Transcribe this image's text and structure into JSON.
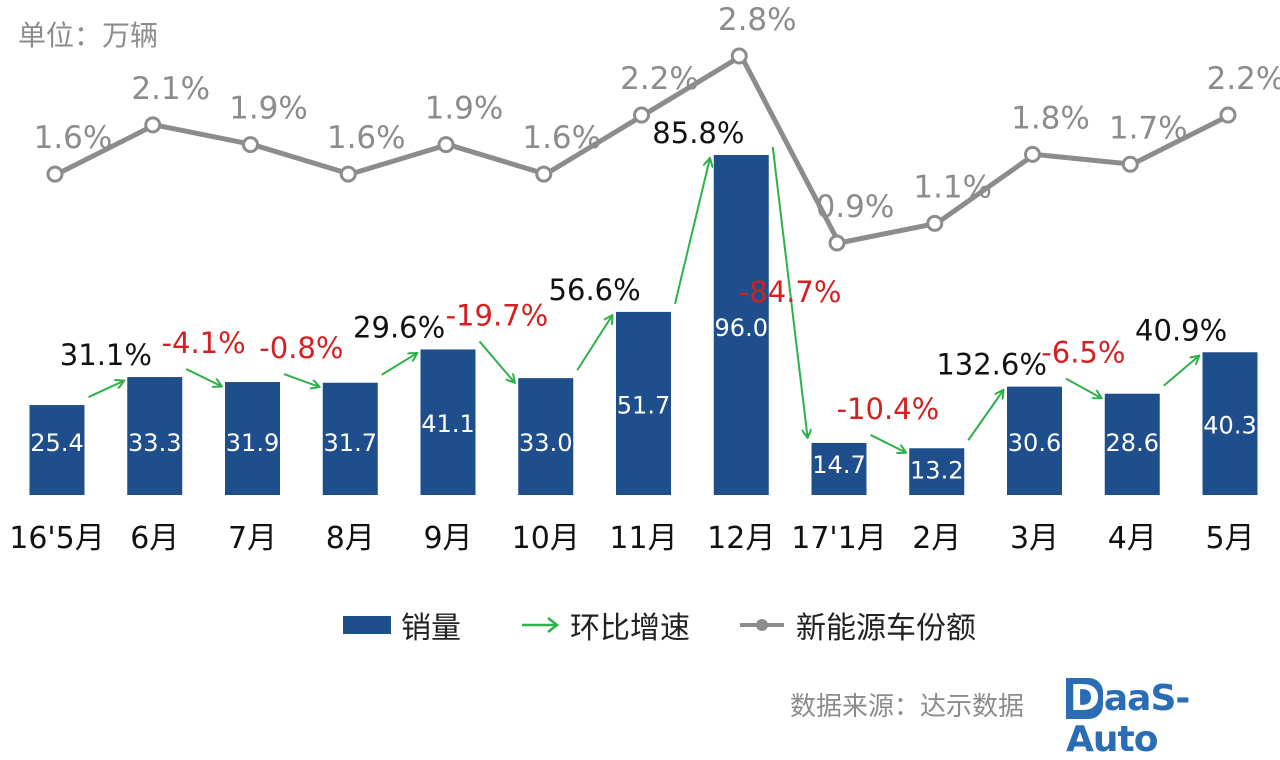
{
  "unit_label": "单位：万辆",
  "source_label": "数据来源：达示数据",
  "logo": {
    "letter": "D",
    "rest": "aaS-Auto"
  },
  "legend": {
    "bars": "销量",
    "arrows": "环比增速",
    "line": "新能源车份额"
  },
  "colors": {
    "bar": "#1f4e8c",
    "line": "#8c8c8c",
    "arrow": "#2db14a",
    "positive_label": "#111111",
    "negative_label": "#d42020",
    "bar_label": "#ffffff"
  },
  "chart_data": {
    "type": "bar",
    "categories": [
      "16'5月",
      "6月",
      "7月",
      "8月",
      "9月",
      "10月",
      "11月",
      "12月",
      "17'1月",
      "2月",
      "3月",
      "4月",
      "5月"
    ],
    "series": [
      {
        "name": "销量",
        "type": "bar",
        "values": [
          25.4,
          33.3,
          31.9,
          31.7,
          41.1,
          33.0,
          51.7,
          96.0,
          14.7,
          13.2,
          30.6,
          28.6,
          40.3
        ],
        "labels": [
          "25.4",
          "33.3",
          "31.9",
          "31.7",
          "41.1",
          "33.0",
          "51.7",
          "96.0",
          "14.7",
          "13.2",
          "30.6",
          "28.6",
          "40.3"
        ]
      },
      {
        "name": "环比增速",
        "type": "arrow",
        "values": [
          null,
          31.1,
          -4.1,
          -0.8,
          29.6,
          -19.7,
          56.6,
          85.8,
          -84.7,
          -10.4,
          132.6,
          -6.5,
          40.9
        ],
        "labels": [
          null,
          "31.1%",
          "-4.1%",
          "-0.8%",
          "29.6%",
          "-19.7%",
          "56.6%",
          "85.8%",
          "-84.7%",
          "-10.4%",
          "132.6%",
          "-6.5%",
          "40.9%"
        ]
      },
      {
        "name": "新能源车份额",
        "type": "line",
        "values": [
          1.6,
          2.1,
          1.9,
          1.6,
          1.9,
          1.6,
          2.2,
          2.8,
          0.9,
          1.1,
          1.8,
          1.7,
          2.2
        ],
        "labels": [
          "1.6%",
          "2.1%",
          "1.9%",
          "1.6%",
          "1.9%",
          "1.6%",
          "2.2%",
          "2.8%",
          "0.9%",
          "1.1%",
          "1.8%",
          "1.7%",
          "2.2%"
        ]
      }
    ],
    "bar_ylim": [
      0,
      96
    ],
    "line_ylim": [
      0.9,
      2.8
    ],
    "grid": false,
    "legend_position": "bottom"
  }
}
